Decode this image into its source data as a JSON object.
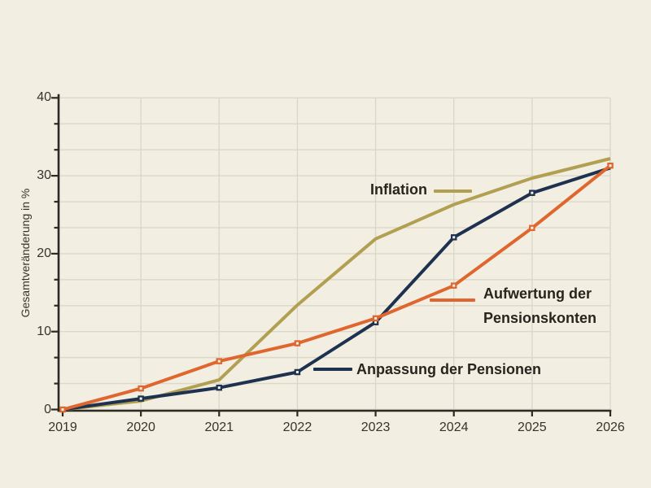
{
  "chart_data": {
    "type": "line",
    "title": "",
    "ylabel": "Gesamtveränderung in %",
    "xlabel": "",
    "x": [
      "2019",
      "2020",
      "2021",
      "2022",
      "2023",
      "2024",
      "2025",
      "2026"
    ],
    "y_ticks": [
      0,
      10,
      20,
      30,
      40
    ],
    "ylim": [
      0,
      40
    ],
    "minor_gridline_step": 3.33,
    "grid": "on",
    "legend_position": "inline-annotations",
    "colors": {
      "background": "#f2eee1",
      "grid": "#dbd8ca",
      "axis": "#2b2a23",
      "tick_label": "#35342c",
      "annotation_text": "#26251e",
      "marker_center": "#f6f3e8"
    },
    "series": [
      {
        "id": "inflation",
        "name": "Inflation",
        "color": "#b2a052",
        "values": [
          0,
          1.1,
          3.8,
          13.4,
          21.9,
          26.3,
          29.7,
          32.2
        ],
        "marker_indices": []
      },
      {
        "id": "anpassung",
        "name": "Anpassung der Pensionen",
        "color": "#1e3250",
        "values": [
          0,
          1.4,
          2.8,
          4.8,
          11.2,
          22.1,
          27.8,
          31.0
        ],
        "marker_indices": [
          1,
          2,
          3,
          4,
          5,
          6
        ]
      },
      {
        "id": "aufwertung",
        "name": "Aufwertung der Pensionskonten",
        "color": "#df662e",
        "values": [
          0,
          2.7,
          6.2,
          8.5,
          11.7,
          15.9,
          23.3,
          31.3
        ],
        "marker_indices": [
          0,
          1,
          2,
          3,
          4,
          5,
          6,
          7
        ]
      }
    ]
  }
}
